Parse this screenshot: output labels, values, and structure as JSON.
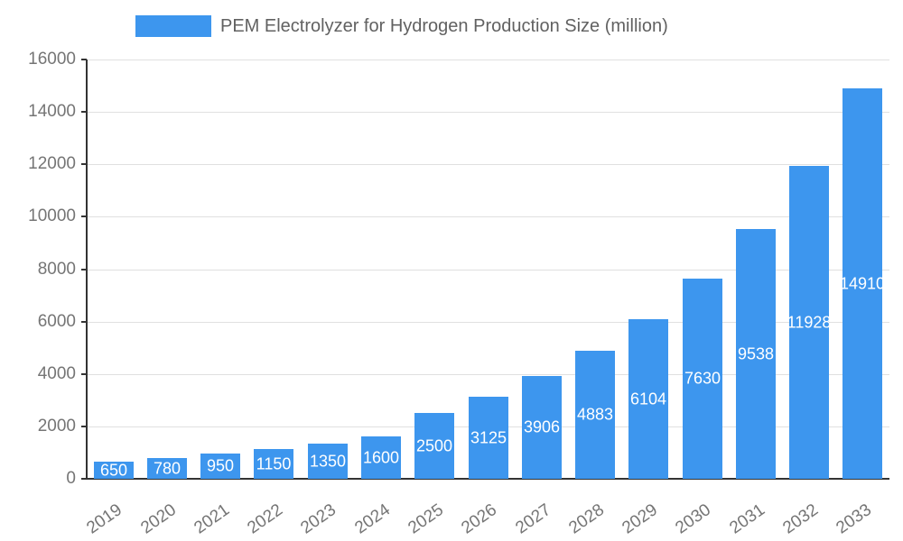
{
  "chart_data": {
    "type": "bar",
    "title": "PEM Electrolyzer for Hydrogen Production Size (million)",
    "categories": [
      "2019",
      "2020",
      "2021",
      "2022",
      "2023",
      "2024",
      "2025",
      "2026",
      "2027",
      "2028",
      "2029",
      "2030",
      "2031",
      "2032",
      "2033"
    ],
    "values": [
      650,
      780,
      950,
      1150,
      1350,
      1600,
      2500,
      3125,
      3906,
      4883,
      6104,
      7630,
      9538,
      11928,
      14910
    ],
    "xlabel": "",
    "ylabel": "",
    "ylim": [
      0,
      16000
    ],
    "ytick_step": 2000,
    "grid": true,
    "legend_position": "top",
    "colors": {
      "bar": "#3d96ee",
      "value_label": "#ffffff",
      "axis_text": "#757575",
      "legend_text": "#616161",
      "gridline": "#e0e0e0",
      "axis_line": "#333333",
      "background": "#ffffff"
    }
  }
}
